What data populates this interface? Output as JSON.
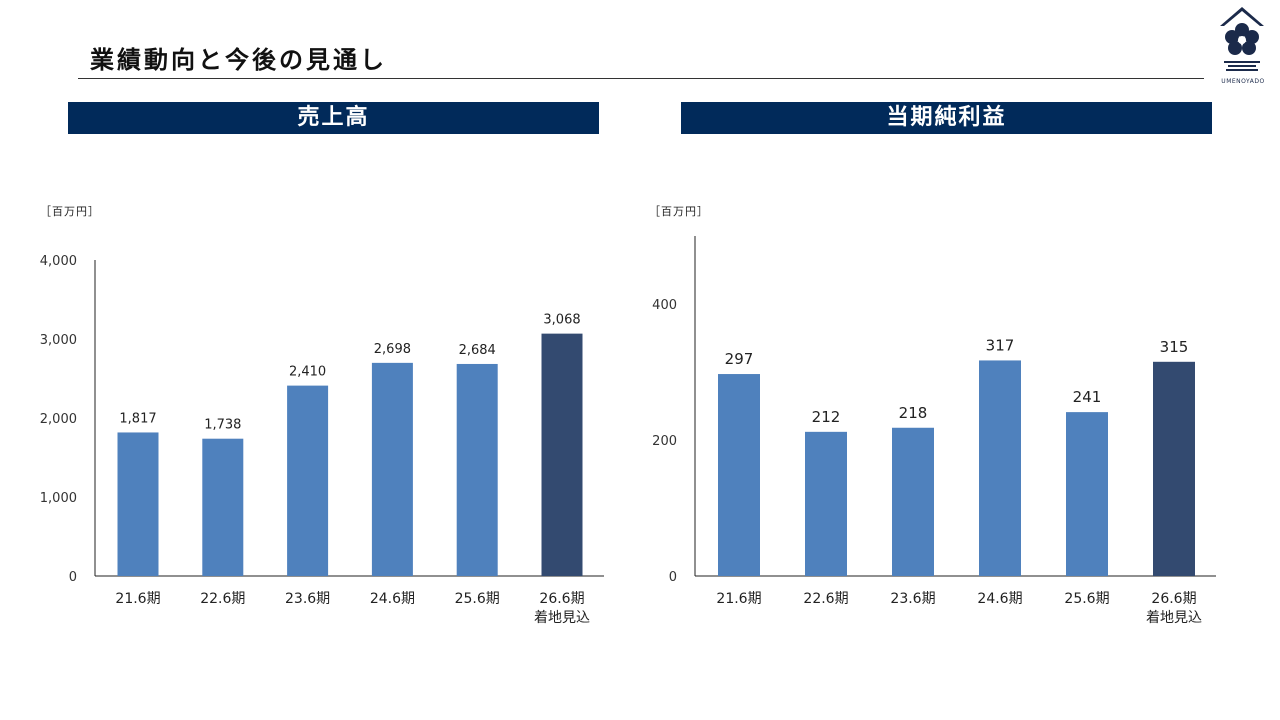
{
  "header": {
    "title": "業績動向と今後の見通し",
    "logo_text": "UMENOYADO"
  },
  "colors": {
    "banner": "#012a5a",
    "bar_actual": "#4f81bd",
    "bar_forecast": "#334a70"
  },
  "chart_data": [
    {
      "type": "bar",
      "title": "売上高",
      "unit": "［百万円］",
      "categories": [
        "21.6期",
        "22.6期",
        "23.6期",
        "24.6期",
        "25.6期",
        "26.6期\n着地見込"
      ],
      "values": [
        1817,
        1738,
        2410,
        2698,
        2684,
        3068
      ],
      "value_labels": [
        "1,817",
        "1,738",
        "2,410",
        "2,698",
        "2,684",
        "3,068"
      ],
      "highlight_last": true,
      "ylim": [
        0,
        4000
      ],
      "yticks": [
        0,
        1000,
        2000,
        3000,
        4000
      ],
      "ytick_labels": [
        "0",
        "1,000",
        "2,000",
        "3,000",
        "4,000"
      ],
      "grid": false,
      "legend": "none"
    },
    {
      "type": "bar",
      "title": "当期純利益",
      "unit": "［百万円］",
      "categories": [
        "21.6期",
        "22.6期",
        "23.6期",
        "24.6期",
        "25.6期",
        "26.6期\n着地見込"
      ],
      "values": [
        297,
        212,
        218,
        317,
        241,
        315
      ],
      "value_labels": [
        "297",
        "212",
        "218",
        "317",
        "241",
        "315"
      ],
      "highlight_last": true,
      "ylim": [
        0,
        500
      ],
      "yticks": [
        0,
        200,
        400
      ],
      "ytick_labels": [
        "0",
        "200",
        "400"
      ],
      "grid": false,
      "legend": "none"
    }
  ]
}
